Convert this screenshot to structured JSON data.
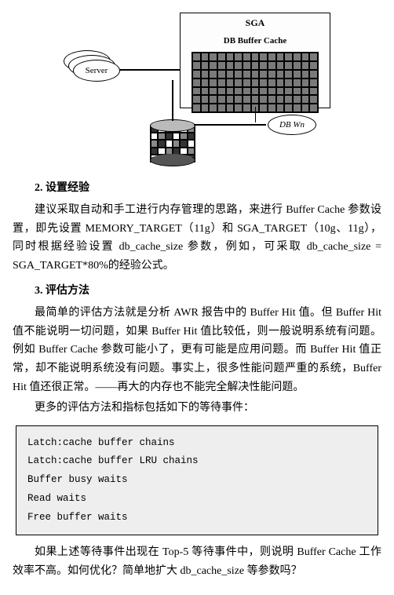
{
  "diagram": {
    "sga_title": "SGA",
    "dbcache_title": "DB Buffer Cache",
    "server_label": "Server",
    "dbwn_label": "DB Wn"
  },
  "section2": {
    "heading": "2.  设置经验",
    "para": "建议采取自动和手工进行内存管理的思路，来进行 Buffer Cache 参数设置，即先设置 MEMORY_TARGET（11g）和 SGA_TARGET（10g、11g），同时根据经验设置 db_cache_size 参数，例如，可采取 db_cache_size = SGA_TARGET*80%的经验公式。"
  },
  "section3": {
    "heading": "3.  评估方法",
    "para1": "最简单的评估方法就是分析 AWR 报告中的 Buffer Hit 值。但 Buffer Hit 值不能说明一切问题，如果 Buffer Hit 值比较低，则一般说明系统有问题。例如 Buffer Cache 参数可能小了，更有可能是应用问题。而 Buffer Hit 值正常，却不能说明系统没有问题。事实上，很多性能问题严重的系统，Buffer Hit 值还很正常。——再大的内存也不能完全解决性能问题。",
    "para2": "更多的评估方法和指标包括如下的等待事件："
  },
  "code_block": {
    "lines": [
      "Latch:cache buffer chains",
      "Latch:cache buffer LRU chains",
      "Buffer busy waits",
      "Read waits",
      "Free buffer waits"
    ]
  },
  "footer": {
    "para": "如果上述等待事件出现在 Top-5 等待事件中，则说明 Buffer Cache 工作效率不高。如何优化？简单地扩大 db_cache_size 等参数吗？"
  },
  "colors": {
    "code_bg": "#eeeeee",
    "grid_fill": "#7a7a7a"
  }
}
